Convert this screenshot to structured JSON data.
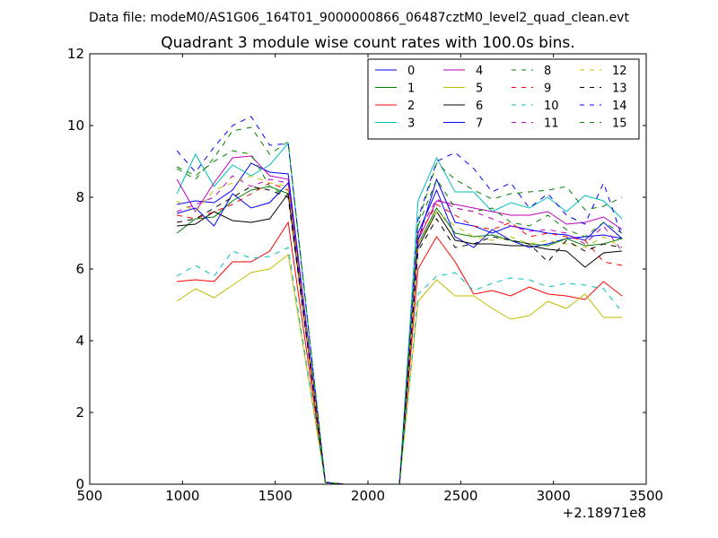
{
  "chart_data": {
    "type": "line",
    "suptitle": "Data file: modeM0/AS1G06_164T01_9000000866_06487cztM0_level2_quad_clean.evt",
    "title": "Quadrant 3 module wise count rates with 100.0s bins.",
    "xlabel": "",
    "ylabel": "",
    "x_offset_label": "+2.18971e8",
    "xlim": [
      500,
      3500
    ],
    "ylim": [
      0,
      12
    ],
    "xticks": [
      500,
      1000,
      1500,
      2000,
      2500,
      3000,
      3500
    ],
    "yticks": [
      0,
      2,
      4,
      6,
      8,
      10,
      12
    ],
    "legend_position": "top-right",
    "legend_columns": 4,
    "grid": false,
    "x": [
      970,
      1070,
      1170,
      1270,
      1370,
      1470,
      1570,
      1770,
      1870,
      1970,
      2070,
      2170,
      2270,
      2370,
      2470,
      2570,
      2670,
      2770,
      2870,
      2970,
      3070,
      3170,
      3270,
      3370
    ],
    "series": [
      {
        "name": "0",
        "color": "#0000ff",
        "dash": "solid",
        "values": [
          7.8,
          7.9,
          7.85,
          8.2,
          8.95,
          8.7,
          8.65,
          0.05,
          0.0,
          0.0,
          0.0,
          0.0,
          7.0,
          8.2,
          6.9,
          6.6,
          7.1,
          6.8,
          6.6,
          6.7,
          6.85,
          6.9,
          6.95,
          6.85
        ]
      },
      {
        "name": "1",
        "color": "#008000",
        "dash": "solid",
        "values": [
          7.0,
          7.4,
          7.45,
          7.9,
          8.2,
          8.3,
          8.1,
          0.05,
          0.0,
          0.0,
          0.0,
          0.0,
          6.7,
          7.7,
          7.0,
          6.9,
          6.95,
          6.8,
          6.7,
          6.65,
          6.85,
          6.65,
          6.7,
          6.85
        ]
      },
      {
        "name": "2",
        "color": "#ff0000",
        "dash": "solid",
        "values": [
          5.65,
          5.7,
          5.65,
          6.2,
          6.2,
          6.5,
          7.3,
          0.05,
          0.0,
          0.0,
          0.0,
          0.0,
          6.0,
          6.9,
          6.2,
          5.3,
          5.4,
          5.25,
          5.5,
          5.3,
          5.25,
          5.15,
          5.65,
          5.25
        ]
      },
      {
        "name": "3",
        "color": "#00bfbf",
        "dash": "solid",
        "values": [
          8.1,
          9.2,
          8.3,
          8.9,
          8.6,
          8.9,
          9.5,
          0.05,
          0.0,
          0.0,
          0.0,
          0.0,
          7.9,
          9.1,
          8.15,
          8.15,
          7.6,
          7.85,
          7.7,
          8.0,
          7.6,
          8.05,
          7.9,
          7.4
        ]
      },
      {
        "name": "4",
        "color": "#bf00bf",
        "dash": "solid",
        "values": [
          8.5,
          7.6,
          8.4,
          9.1,
          9.15,
          8.6,
          8.5,
          0.05,
          0.0,
          0.0,
          0.0,
          0.0,
          6.8,
          7.9,
          7.8,
          7.7,
          7.6,
          7.5,
          7.5,
          7.6,
          7.25,
          7.3,
          7.45,
          7.1
        ]
      },
      {
        "name": "5",
        "color": "#bfbf00",
        "dash": "solid",
        "values": [
          5.1,
          5.45,
          5.2,
          5.55,
          5.9,
          6.0,
          6.4,
          0.05,
          0.0,
          0.0,
          0.0,
          0.0,
          5.1,
          5.7,
          5.25,
          5.25,
          4.9,
          4.6,
          4.7,
          5.1,
          4.9,
          5.3,
          4.65,
          4.65
        ]
      },
      {
        "name": "6",
        "color": "#000000",
        "dash": "solid",
        "values": [
          7.2,
          7.25,
          7.6,
          7.35,
          7.3,
          7.4,
          8.1,
          0.05,
          0.0,
          0.0,
          0.0,
          0.0,
          6.6,
          7.6,
          6.8,
          6.7,
          6.7,
          6.65,
          6.65,
          6.55,
          6.5,
          6.05,
          6.45,
          6.5
        ]
      },
      {
        "name": "7",
        "color": "#0000ff",
        "dash": "solid",
        "values": [
          7.55,
          7.7,
          7.2,
          8.1,
          7.7,
          7.85,
          8.4,
          0.05,
          0.0,
          0.0,
          0.0,
          0.0,
          6.8,
          8.5,
          7.3,
          7.2,
          7.0,
          7.2,
          7.1,
          7.0,
          6.95,
          6.8,
          7.3,
          6.85
        ]
      },
      {
        "name": "8",
        "color": "#008000",
        "dash": "dashed",
        "values": [
          8.85,
          8.6,
          9.0,
          9.3,
          9.2,
          8.3,
          8.0,
          0.05,
          0.0,
          0.0,
          0.0,
          0.0,
          7.2,
          8.5,
          7.7,
          7.6,
          7.7,
          7.3,
          7.2,
          7.5,
          7.1,
          6.9,
          7.3,
          7.0
        ]
      },
      {
        "name": "9",
        "color": "#ff0000",
        "dash": "dashed",
        "values": [
          7.5,
          7.4,
          7.6,
          7.8,
          8.1,
          8.4,
          8.2,
          0.05,
          0.0,
          0.0,
          0.0,
          0.0,
          6.9,
          7.8,
          7.5,
          7.2,
          7.1,
          7.3,
          6.9,
          7.0,
          6.9,
          6.8,
          6.2,
          6.1
        ]
      },
      {
        "name": "10",
        "color": "#00bfbf",
        "dash": "dashed",
        "values": [
          5.8,
          6.1,
          5.8,
          6.5,
          6.3,
          6.35,
          6.6,
          0.05,
          0.0,
          0.0,
          0.0,
          0.0,
          5.3,
          5.8,
          5.9,
          5.4,
          5.6,
          5.75,
          5.7,
          5.5,
          5.6,
          5.55,
          5.45,
          4.8
        ]
      },
      {
        "name": "11",
        "color": "#bf00bf",
        "dash": "dashed",
        "values": [
          7.6,
          7.8,
          8.0,
          8.6,
          8.3,
          8.5,
          8.4,
          0.05,
          0.0,
          0.0,
          0.0,
          0.0,
          7.0,
          7.95,
          7.7,
          7.6,
          7.4,
          7.2,
          7.05,
          7.1,
          7.0,
          6.7,
          7.2,
          6.5
        ]
      },
      {
        "name": "12",
        "color": "#bfbf00",
        "dash": "dashed",
        "values": [
          7.9,
          7.6,
          8.2,
          8.4,
          8.6,
          8.4,
          8.3,
          0.05,
          0.0,
          0.0,
          0.0,
          0.0,
          6.7,
          7.6,
          7.2,
          6.9,
          6.8,
          6.9,
          6.7,
          6.8,
          6.7,
          6.6,
          6.9,
          6.6
        ]
      },
      {
        "name": "13",
        "color": "#000000",
        "dash": "dashed",
        "values": [
          7.3,
          7.4,
          7.7,
          8.0,
          8.3,
          8.2,
          8.0,
          0.05,
          0.0,
          0.0,
          0.0,
          0.0,
          6.5,
          7.4,
          6.6,
          6.7,
          6.9,
          6.8,
          6.7,
          6.2,
          6.8,
          6.5,
          6.7,
          6.6
        ]
      },
      {
        "name": "14",
        "color": "#0000ff",
        "dash": "dashed",
        "values": [
          9.3,
          8.7,
          9.4,
          10.0,
          10.25,
          9.45,
          9.5,
          0.05,
          0.0,
          0.0,
          0.0,
          0.0,
          7.4,
          9.0,
          9.25,
          8.8,
          8.15,
          8.4,
          7.7,
          8.1,
          7.5,
          7.25,
          8.4,
          6.9
        ]
      },
      {
        "name": "15",
        "color": "#008000",
        "dash": "dashed",
        "values": [
          8.8,
          8.5,
          9.1,
          9.85,
          9.95,
          9.2,
          9.55,
          0.05,
          0.0,
          0.0,
          0.0,
          0.0,
          7.3,
          8.95,
          8.5,
          8.2,
          7.95,
          8.1,
          8.15,
          8.2,
          8.3,
          7.65,
          7.75,
          8.0
        ]
      }
    ]
  }
}
